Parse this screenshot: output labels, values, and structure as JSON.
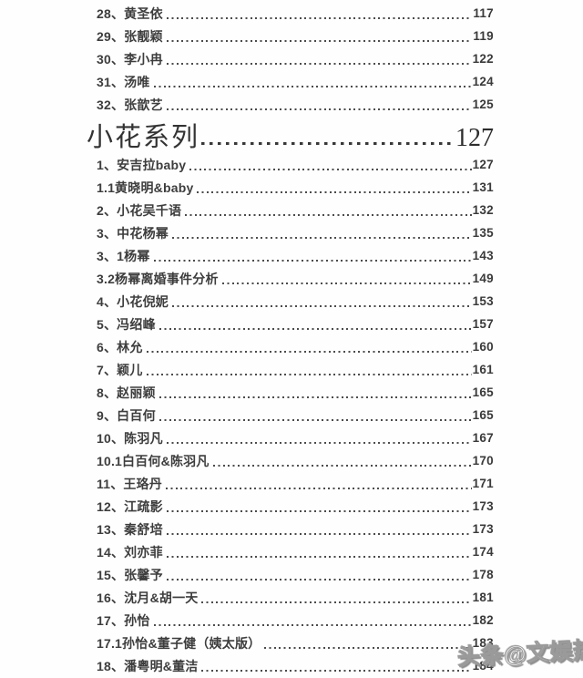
{
  "page": {
    "background": "#fefefe",
    "text_color": "#3d3d3d",
    "dot_color": "#4b4b4b"
  },
  "toc": {
    "top_entries": [
      {
        "title": "28、黄圣依",
        "page": "117"
      },
      {
        "title": "29、张靓颖",
        "page": "119"
      },
      {
        "title": "30、李小冉",
        "page": "122"
      },
      {
        "title": "31、汤唯",
        "page": "124"
      },
      {
        "title": "32、张歆艺",
        "page": "125"
      }
    ],
    "section_heading": {
      "title": "小花系列",
      "page": "127"
    },
    "section_entries": [
      {
        "title": "1、安吉拉baby",
        "page": "127"
      },
      {
        "title": "1.1黄晓明&baby",
        "page": "131"
      },
      {
        "title": "2、小花吴千语",
        "page": "132"
      },
      {
        "title": "3、中花杨幂",
        "page": "135"
      },
      {
        "title": "3、1杨幂",
        "page": "143"
      },
      {
        "title": "3.2杨幂离婚事件分析",
        "page": "149"
      },
      {
        "title": "4、小花倪妮",
        "page": "153"
      },
      {
        "title": "5、冯绍峰",
        "page": "157"
      },
      {
        "title": "6、林允",
        "page": "160"
      },
      {
        "title": "7、颖儿",
        "page": "161"
      },
      {
        "title": "8、赵丽颖",
        "page": "165"
      },
      {
        "title": "9、白百何",
        "page": "165"
      },
      {
        "title": "10、陈羽凡",
        "page": "167"
      },
      {
        "title": "10.1白百何&陈羽凡",
        "page": "170"
      },
      {
        "title": "11、王珞丹",
        "page": "171"
      },
      {
        "title": "12、江疏影",
        "page": "173"
      },
      {
        "title": "13、秦舒培",
        "page": "173"
      },
      {
        "title": "14、刘亦菲",
        "page": "174"
      },
      {
        "title": "15、张馨予",
        "page": "178"
      },
      {
        "title": "16、沈月&胡一天",
        "page": "181"
      },
      {
        "title": "17、孙怡",
        "page": "182"
      },
      {
        "title": "17.1孙怡&董子健（姨太版）",
        "page": "183"
      },
      {
        "title": "18、潘粤明&董洁",
        "page": "184"
      }
    ]
  },
  "watermark": {
    "text": "头条@文娱热火",
    "color": "#fafafa",
    "outline_color": "#9a9a9a"
  }
}
